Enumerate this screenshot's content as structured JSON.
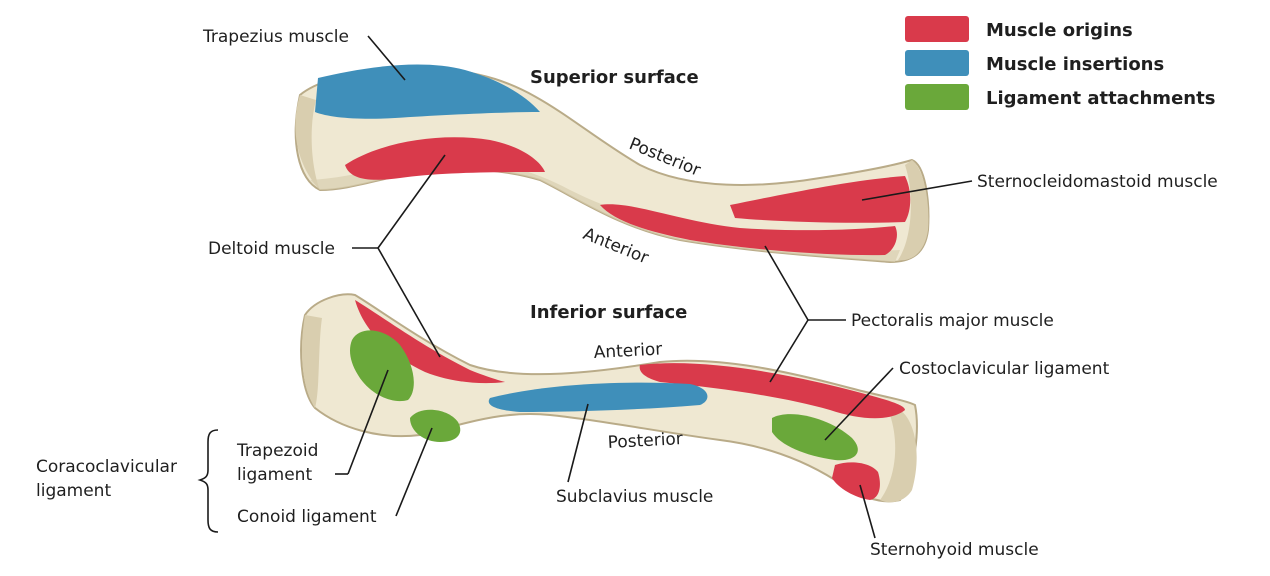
{
  "legend": {
    "items": [
      {
        "label": "Muscle origins",
        "color": "#d93a4b"
      },
      {
        "label": "Muscle insertions",
        "color": "#3f8fba"
      },
      {
        "label": "Ligament attachments",
        "color": "#6aa83a"
      }
    ]
  },
  "colors": {
    "bone": "#efe8d2",
    "bone_shadow": "#d9ceaf",
    "origin": "#d93a4b",
    "insertion": "#3f8fba",
    "ligament": "#6aa83a"
  },
  "views": {
    "superior": "Superior surface",
    "inferior": "Inferior surface"
  },
  "orientation": {
    "sup_posterior": "Posterior",
    "sup_anterior": "Anterior",
    "inf_anterior": "Anterior",
    "inf_posterior": "Posterior"
  },
  "labels": {
    "trapezius": "Trapezius muscle",
    "deltoid": "Deltoid muscle",
    "sternocleidomastoid": "Sternocleidomastoid muscle",
    "pectoralis": "Pectoralis major muscle",
    "costoclavicular": "Costoclavicular ligament",
    "coracoclavicular_line1": "Coracoclavicular",
    "coracoclavicular_line2": "ligament",
    "trapezoid_line1": "Trapezoid",
    "trapezoid_line2": "ligament",
    "conoid": "Conoid ligament",
    "subclavius": "Subclavius muscle",
    "sternohyoid": "Sternohyoid muscle"
  }
}
